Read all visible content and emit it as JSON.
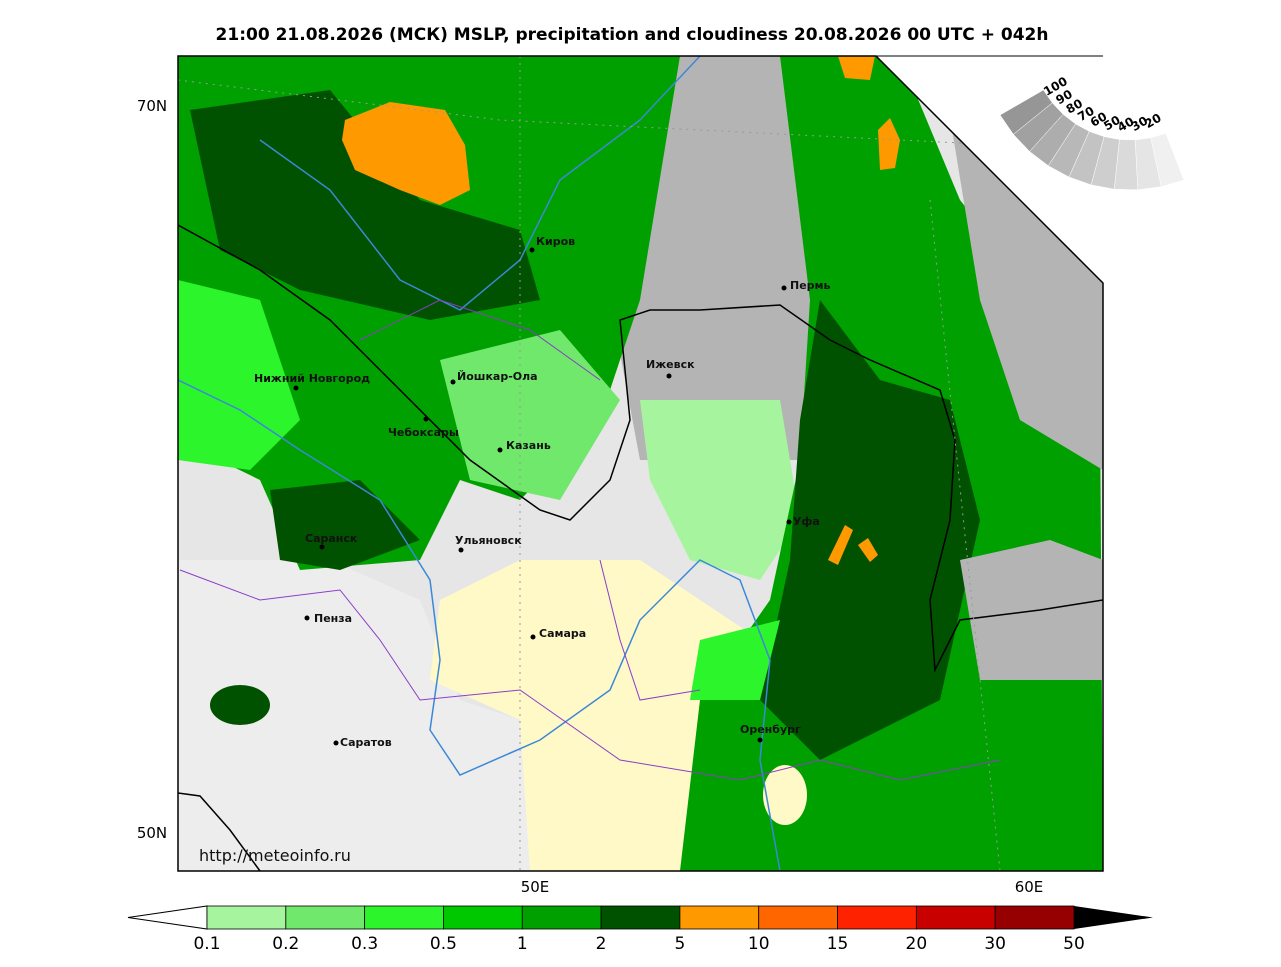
{
  "title": "21:00 21.08.2026 (МСК) MSLP, precipitation and cloudiness 20.08.2026 00 UTC + 042h",
  "lat_labels": [
    "70N",
    "50N"
  ],
  "lon_labels": [
    "50E",
    "60E"
  ],
  "url": "http://meteoinfo.ru",
  "cities": [
    "Киров",
    "Пермь",
    "Нижний Новгород",
    "Йошкар-Ола",
    "Ижевск",
    "Чебоксары",
    "Казань",
    "Саранск",
    "Ульяновск",
    "Уфа",
    "Пенза",
    "Самара",
    "Саратов",
    "Оренбург"
  ],
  "cloud_scale": [
    "100",
    "90",
    "80",
    "70",
    "60",
    "50",
    "40",
    "30",
    "20"
  ],
  "colorbar": {
    "levels": [
      "0.1",
      "0.2",
      "0.3",
      "0.5",
      "1",
      "2",
      "5",
      "10",
      "15",
      "20",
      "30",
      "50"
    ],
    "colors": [
      "#a6f59e",
      "#6fe86b",
      "#2cf52c",
      "#00c800",
      "#00a000",
      "#005200",
      "#ff9900",
      "#ff6600",
      "#ff2200",
      "#c80000",
      "#960000"
    ]
  }
}
